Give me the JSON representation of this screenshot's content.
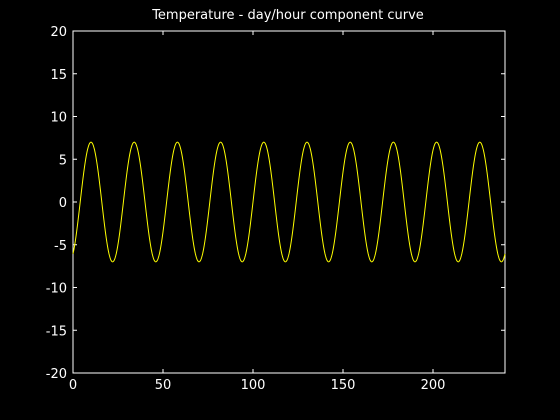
{
  "colors": {
    "background": "#000000",
    "axes": "#ffffff",
    "series": "#ffff00"
  },
  "chart_data": {
    "type": "line",
    "title": "Temperature - day/hour component curve",
    "xlabel": "",
    "ylabel": "",
    "xlim": [
      0,
      240
    ],
    "ylim": [
      -20,
      20
    ],
    "xticks": [
      0,
      50,
      100,
      150,
      200
    ],
    "yticks": [
      -20,
      -15,
      -10,
      -5,
      0,
      5,
      10,
      15,
      20
    ],
    "grid": false,
    "box": true,
    "series": [
      {
        "formula": "y = 7*sin(2*pi*(x - 4)/24)",
        "amplitude": 7,
        "period": 24,
        "phase_offset": 4,
        "x_start": 0,
        "x_end": 240,
        "sample_points": [
          [
            0,
            -6.06
          ],
          [
            4,
            0
          ],
          [
            10,
            7
          ],
          [
            16,
            0
          ],
          [
            22,
            -7
          ],
          [
            28,
            0
          ],
          [
            34,
            7
          ],
          [
            40,
            0
          ],
          [
            46,
            -7
          ],
          [
            52,
            0
          ],
          [
            58,
            7
          ],
          [
            64,
            0
          ],
          [
            70,
            -7
          ],
          [
            76,
            0
          ],
          [
            82,
            7
          ],
          [
            88,
            0
          ],
          [
            94,
            -7
          ],
          [
            100,
            0
          ],
          [
            106,
            7
          ],
          [
            112,
            0
          ],
          [
            118,
            -7
          ],
          [
            124,
            0
          ],
          [
            130,
            7
          ],
          [
            136,
            0
          ],
          [
            142,
            -7
          ],
          [
            148,
            0
          ],
          [
            154,
            7
          ],
          [
            160,
            0
          ],
          [
            166,
            -7
          ],
          [
            172,
            0
          ],
          [
            178,
            7
          ],
          [
            184,
            0
          ],
          [
            190,
            -7
          ],
          [
            196,
            0
          ],
          [
            202,
            7
          ],
          [
            208,
            0
          ],
          [
            214,
            -7
          ],
          [
            220,
            0
          ],
          [
            226,
            7
          ],
          [
            232,
            0
          ],
          [
            238,
            -7
          ],
          [
            240,
            -6.06
          ]
        ]
      }
    ]
  }
}
